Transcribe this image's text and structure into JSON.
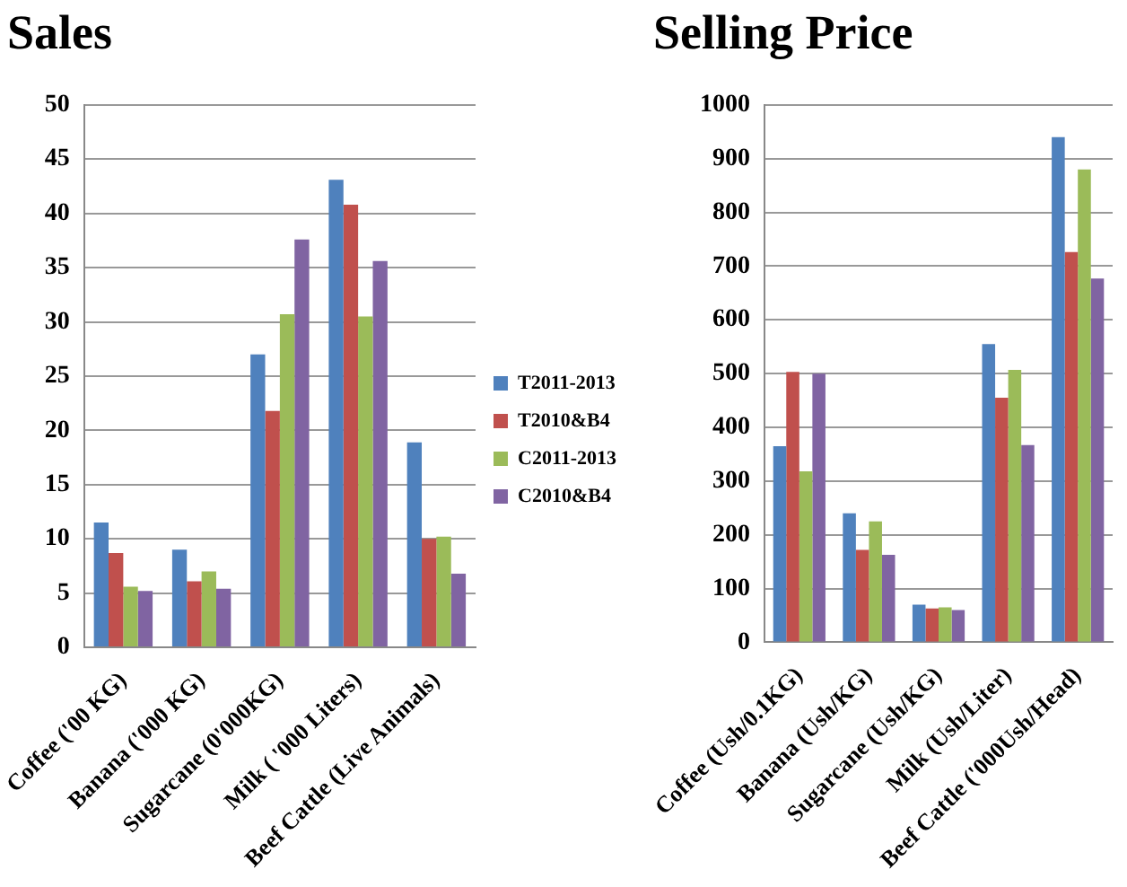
{
  "chart_data": [
    {
      "type": "bar",
      "title": "Sales",
      "categories": [
        "Coffee ('00 KG)",
        "Banana ('000 KG)",
        "Sugarcane (0'000KG)",
        "Milk ( '000 Liters)",
        "Beef Cattle (Live Animals)"
      ],
      "series": [
        {
          "name": "T2011-2013",
          "color": "#4f81bd",
          "values": [
            11.5,
            9.0,
            27.0,
            43.1,
            18.9
          ]
        },
        {
          "name": "T2010&B4",
          "color": "#c0504d",
          "values": [
            8.7,
            6.1,
            21.8,
            40.8,
            10.0
          ]
        },
        {
          "name": "C2011-2013",
          "color": "#9bbb59",
          "values": [
            5.6,
            7.0,
            30.7,
            30.5,
            10.2
          ]
        },
        {
          "name": "C2010&B4",
          "color": "#8064a2",
          "values": [
            5.2,
            5.4,
            37.6,
            35.6,
            6.8
          ]
        }
      ],
      "ylim": [
        0,
        50
      ],
      "yticks": [
        0,
        5,
        10,
        15,
        20,
        25,
        30,
        35,
        40,
        45,
        50
      ],
      "grid": "y",
      "legend": "right"
    },
    {
      "type": "bar",
      "title": "Selling Price",
      "categories": [
        "Coffee (Ush/0.1KG)",
        "Banana (Ush/KG)",
        "Sugarcane (Ush/KG)",
        "Milk (Ush/Liter)",
        "Beef Cattle ('000Ush/Head)"
      ],
      "series": [
        {
          "color": "#4f81bd",
          "values": [
            365,
            240,
            70,
            555,
            940
          ]
        },
        {
          "color": "#c0504d",
          "values": [
            503,
            172,
            63,
            455,
            726
          ]
        },
        {
          "color": "#9bbb59",
          "values": [
            318,
            225,
            65,
            507,
            880
          ]
        },
        {
          "color": "#8064a2",
          "values": [
            500,
            163,
            60,
            367,
            677
          ]
        }
      ],
      "ylim": [
        0,
        1000
      ],
      "yticks": [
        0,
        100,
        200,
        300,
        400,
        500,
        600,
        700,
        800,
        900,
        1000
      ],
      "grid": "y"
    }
  ]
}
